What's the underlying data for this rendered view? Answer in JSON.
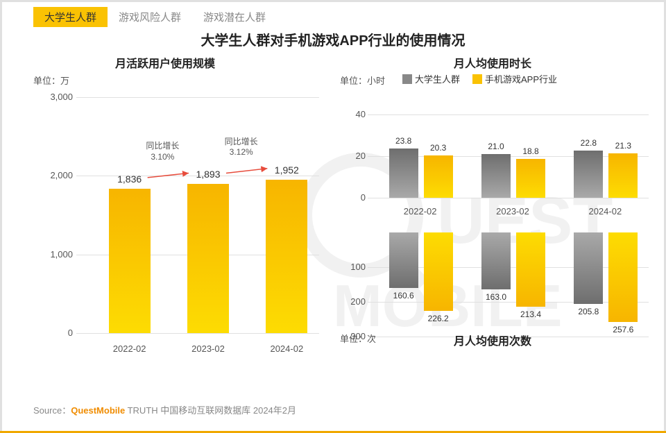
{
  "tabs": [
    {
      "label": "大学生人群",
      "active": true
    },
    {
      "label": "游戏风险人群",
      "active": false
    },
    {
      "label": "游戏潜在人群",
      "active": false
    }
  ],
  "main_title": "大学生人群对手机游戏APP行业的使用情况",
  "left_chart": {
    "title": "月活跃用户使用规模",
    "unit": "单位：万",
    "type": "bar",
    "categories": [
      "2022-02",
      "2023-02",
      "2024-02"
    ],
    "values": [
      1836,
      1893,
      1952
    ],
    "value_labels": [
      "1,836",
      "1,893",
      "1,952"
    ],
    "yticks": [
      0,
      1000,
      2000,
      3000
    ],
    "ytick_labels": [
      "0",
      "1,000",
      "2,000",
      "3,000"
    ],
    "ylim": [
      0,
      3000
    ],
    "bar_color_top": "#f7b500",
    "bar_color_bottom": "#fddc02",
    "growth": [
      {
        "text_line1": "同比增长",
        "text_line2": "3.10%"
      },
      {
        "text_line1": "同比增长",
        "text_line2": "3.12%"
      }
    ],
    "arrow_color": "#e74c3c"
  },
  "right_top_chart": {
    "title": "月人均使用时长",
    "unit": "单位：小时",
    "type": "grouped-bar",
    "categories": [
      "2022-02",
      "2023-02",
      "2024-02"
    ],
    "series": [
      {
        "name": "大学生人群",
        "color_top": "#6e6e6e",
        "color_bottom": "#a9a9a9",
        "values": [
          23.8,
          21.0,
          22.8
        ]
      },
      {
        "name": "手机游戏APP行业",
        "color_top": "#f7b500",
        "color_bottom": "#fddc02",
        "values": [
          20.3,
          18.8,
          21.3
        ]
      }
    ],
    "yticks": [
      0,
      20,
      40
    ],
    "ylim": [
      0,
      40
    ]
  },
  "right_bottom_chart": {
    "title": "月人均使用次数",
    "unit": "单位：次",
    "type": "grouped-bar-inverted",
    "categories": [
      "2022-02",
      "2023-02",
      "2024-02"
    ],
    "series": [
      {
        "name": "大学生人群",
        "color_top": "#6e6e6e",
        "color_bottom": "#a9a9a9",
        "values": [
          160.6,
          163.0,
          205.8
        ]
      },
      {
        "name": "手机游戏APP行业",
        "color_top": "#f7b500",
        "color_bottom": "#fddc02",
        "values": [
          226.2,
          213.4,
          257.6
        ]
      }
    ],
    "yticks": [
      100,
      200,
      300
    ],
    "ylim": [
      0,
      300
    ]
  },
  "legend": [
    {
      "label": "大学生人群",
      "color": "#888888"
    },
    {
      "label": "手机游戏APP行业",
      "color": "#fac203"
    }
  ],
  "source": {
    "prefix": "Source：",
    "brand": "QuestMobile",
    "rest": " TRUTH 中国移动互联网数据库 2024年2月"
  },
  "colors": {
    "accent": "#fac203",
    "border": "#f0a800",
    "grid": "#e0e0e0",
    "text": "#333333",
    "muted": "#888888"
  }
}
